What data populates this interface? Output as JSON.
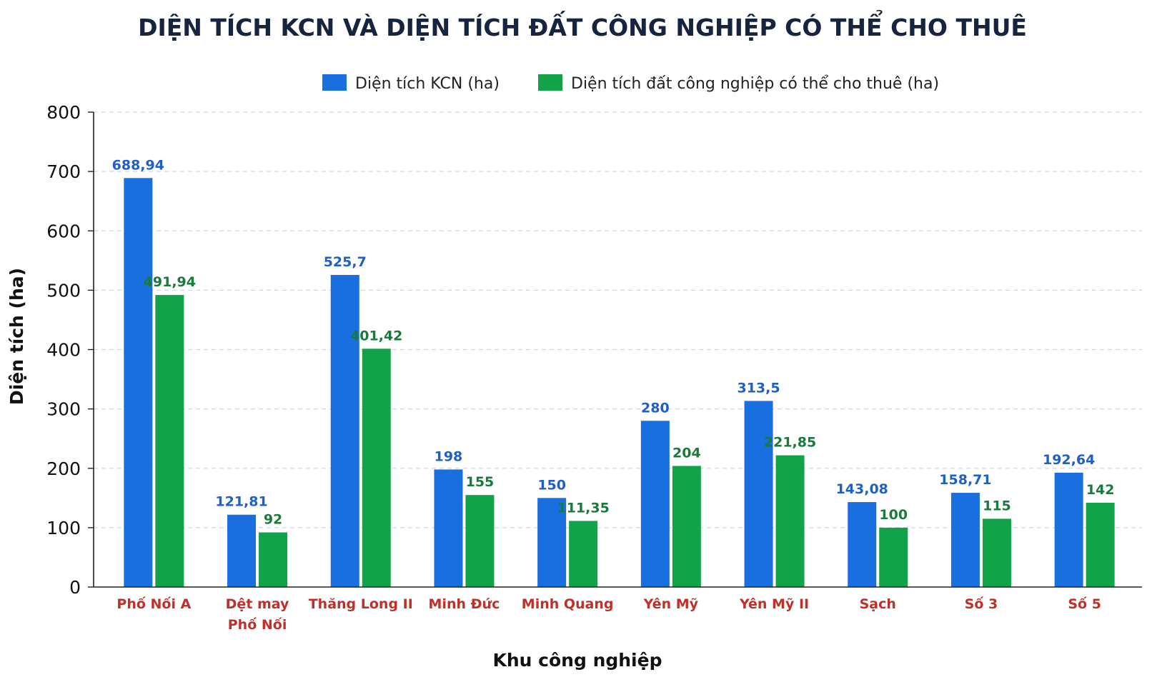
{
  "chart_data": {
    "type": "bar",
    "title": "DIỆN TÍCH KCN VÀ DIỆN TÍCH ĐẤT CÔNG NGHIỆP CÓ THỂ CHO THUÊ",
    "xlabel": "Khu công nghiệp",
    "ylabel": "Diện tích (ha)",
    "ylim": [
      0,
      800
    ],
    "yticks": [
      0,
      100,
      200,
      300,
      400,
      500,
      600,
      700,
      800
    ],
    "grid": true,
    "legend_position": "top-center",
    "categories": [
      [
        "Phố Nối A"
      ],
      [
        "Dệt may",
        "Phố Nối"
      ],
      [
        "Thăng Long II"
      ],
      [
        "Minh Đức"
      ],
      [
        "Minh Quang"
      ],
      [
        "Yên Mỹ"
      ],
      [
        "Yên Mỹ II"
      ],
      [
        "Sạch"
      ],
      [
        "Số 3"
      ],
      [
        "Số 5"
      ]
    ],
    "series": [
      {
        "name": "Diện tích KCN (ha)",
        "color": "#1a6fe0",
        "values": [
          688.94,
          121.81,
          525.7,
          198,
          150,
          280,
          313.5,
          143.08,
          158.71,
          192.64
        ],
        "labels": [
          "688,94",
          "121,81",
          "525,7",
          "198",
          "150",
          "280",
          "313,5",
          "143,08",
          "158,71",
          "192,64"
        ]
      },
      {
        "name": "Diện tích đất công nghiệp có thể cho thuê (ha)",
        "color": "#12a34a",
        "values": [
          491.94,
          92,
          401.42,
          155,
          111.35,
          204,
          221.85,
          100,
          115,
          142
        ],
        "labels": [
          "491,94",
          "92",
          "401,42",
          "155",
          "111,35",
          "204",
          "221,85",
          "100",
          "115",
          "142"
        ]
      }
    ]
  }
}
